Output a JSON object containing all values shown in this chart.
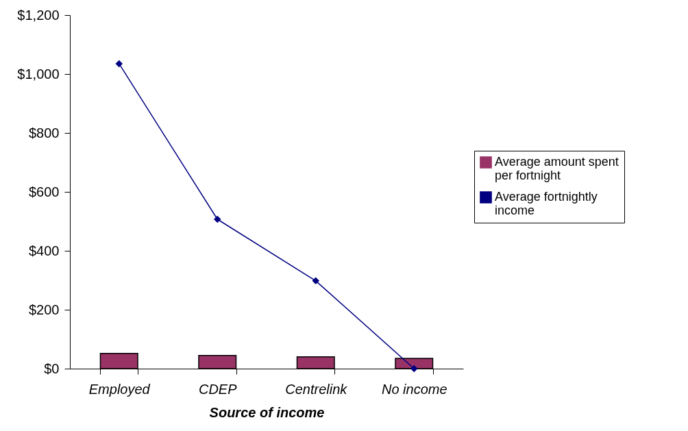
{
  "chart_data": {
    "type": "bar",
    "xlabel": "Source of income",
    "categories": [
      "Employed",
      "CDEP",
      "Centrelink",
      "No income"
    ],
    "ylim": [
      0,
      1200
    ],
    "yticks": [
      {
        "value": 0,
        "label": "$0"
      },
      {
        "value": 200,
        "label": "$200"
      },
      {
        "value": 400,
        "label": "$400"
      },
      {
        "value": 600,
        "label": "$600"
      },
      {
        "value": 800,
        "label": "$800"
      },
      {
        "value": 1000,
        "label": "$1,000"
      },
      {
        "value": 1200,
        "label": "$1,200"
      }
    ],
    "series": [
      {
        "name": "Average amount spent per fortnight",
        "color": "#993366",
        "values": [
          52,
          45,
          40,
          35
        ]
      },
      {
        "name": "Average fortnightly income",
        "type": "line",
        "color": "#000080",
        "marker": "diamond",
        "values": [
          1035,
          507,
          298,
          0
        ]
      }
    ],
    "legend": "right",
    "grid": false
  }
}
